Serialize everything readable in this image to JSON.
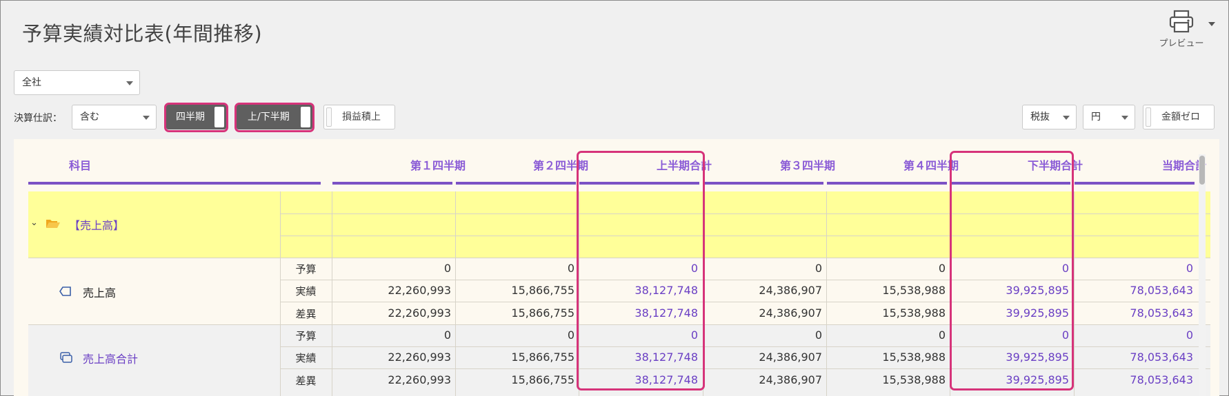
{
  "page": {
    "title": "予算実績対比表(年間推移)"
  },
  "toolbar": {
    "preview_label": "プレビュー",
    "scope_select": "全社",
    "settlement_label": "決算仕訳：",
    "settlement_select": "含む",
    "quarter_toggle": "四半期",
    "half_toggle": "上/下半期",
    "pl_button": "損益積上",
    "tax_select": "税抜",
    "unit_select": "円",
    "zero_button": "金額ゼロ"
  },
  "table": {
    "headers": {
      "subject": "科目",
      "q1": "第１四半期",
      "q2": "第２四半期",
      "h1": "上半期合計",
      "q3": "第３四半期",
      "q4": "第４四半期",
      "h2": "下半期合計",
      "total": "当期合計"
    },
    "group_label": "【売上高】",
    "items": [
      {
        "label": "売上高",
        "rows": [
          {
            "type": "予算",
            "q1": "0",
            "q2": "0",
            "h1": "0",
            "q3": "0",
            "q4": "0",
            "h2": "0",
            "total": "0"
          },
          {
            "type": "実績",
            "q1": "22,260,993",
            "q2": "15,866,755",
            "h1": "38,127,748",
            "q3": "24,386,907",
            "q4": "15,538,988",
            "h2": "39,925,895",
            "total": "78,053,643"
          },
          {
            "type": "差異",
            "q1": "22,260,993",
            "q2": "15,866,755",
            "h1": "38,127,748",
            "q3": "24,386,907",
            "q4": "15,538,988",
            "h2": "39,925,895",
            "total": "78,053,643"
          }
        ]
      },
      {
        "label": "売上高合計",
        "rows": [
          {
            "type": "予算",
            "q1": "0",
            "q2": "0",
            "h1": "0",
            "q3": "0",
            "q4": "0",
            "h2": "0",
            "total": "0"
          },
          {
            "type": "実績",
            "q1": "22,260,993",
            "q2": "15,866,755",
            "h1": "38,127,748",
            "q3": "24,386,907",
            "q4": "15,538,988",
            "h2": "39,925,895",
            "total": "78,053,643"
          },
          {
            "type": "差異",
            "q1": "22,260,993",
            "q2": "15,866,755",
            "h1": "38,127,748",
            "q3": "24,386,907",
            "q4": "15,538,988",
            "h2": "39,925,895",
            "total": "78,053,643"
          }
        ]
      }
    ]
  },
  "colors": {
    "accent": "#7b52c5",
    "highlight": "#d6337a",
    "group_bg": "#ffff99",
    "summary_bg": "#f1f1f1"
  },
  "icons": [
    "printer-icon",
    "folder-open-icon",
    "account-icon",
    "account-total-icon",
    "chevron-down-icon"
  ]
}
